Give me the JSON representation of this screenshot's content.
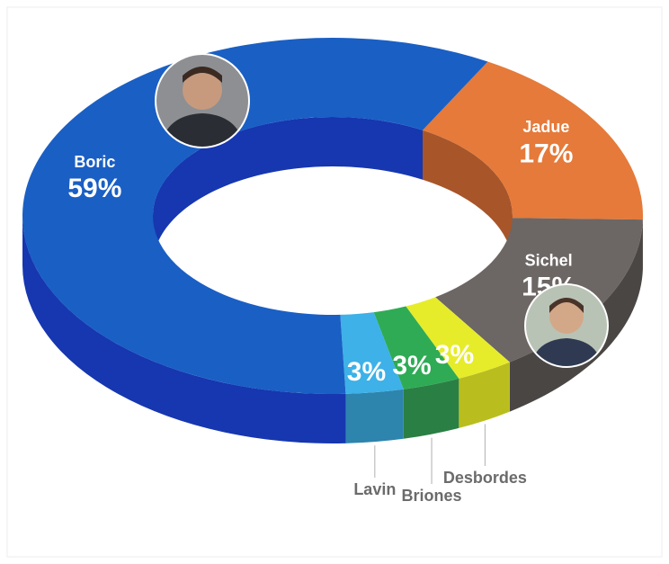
{
  "chart_data": {
    "type": "donut",
    "categories": [
      "Jadue",
      "Sichel",
      "Desbordes",
      "Briones",
      "Lavin",
      "Boric"
    ],
    "values": [
      17,
      15,
      3,
      3,
      3,
      59
    ],
    "value_labels": [
      "17%",
      "15%",
      "3%",
      "3%",
      "3%",
      "59%"
    ],
    "colors": [
      "#e57a3a",
      "#6c6664",
      "#e6ec2a",
      "#2fab55",
      "#3db1e8",
      "#1a5fc4"
    ],
    "side_colors": [
      "#a8552a",
      "#4a4644",
      "#b9be1e",
      "#2a7f45",
      "#2d84ad",
      "#1637b0"
    ]
  }
}
